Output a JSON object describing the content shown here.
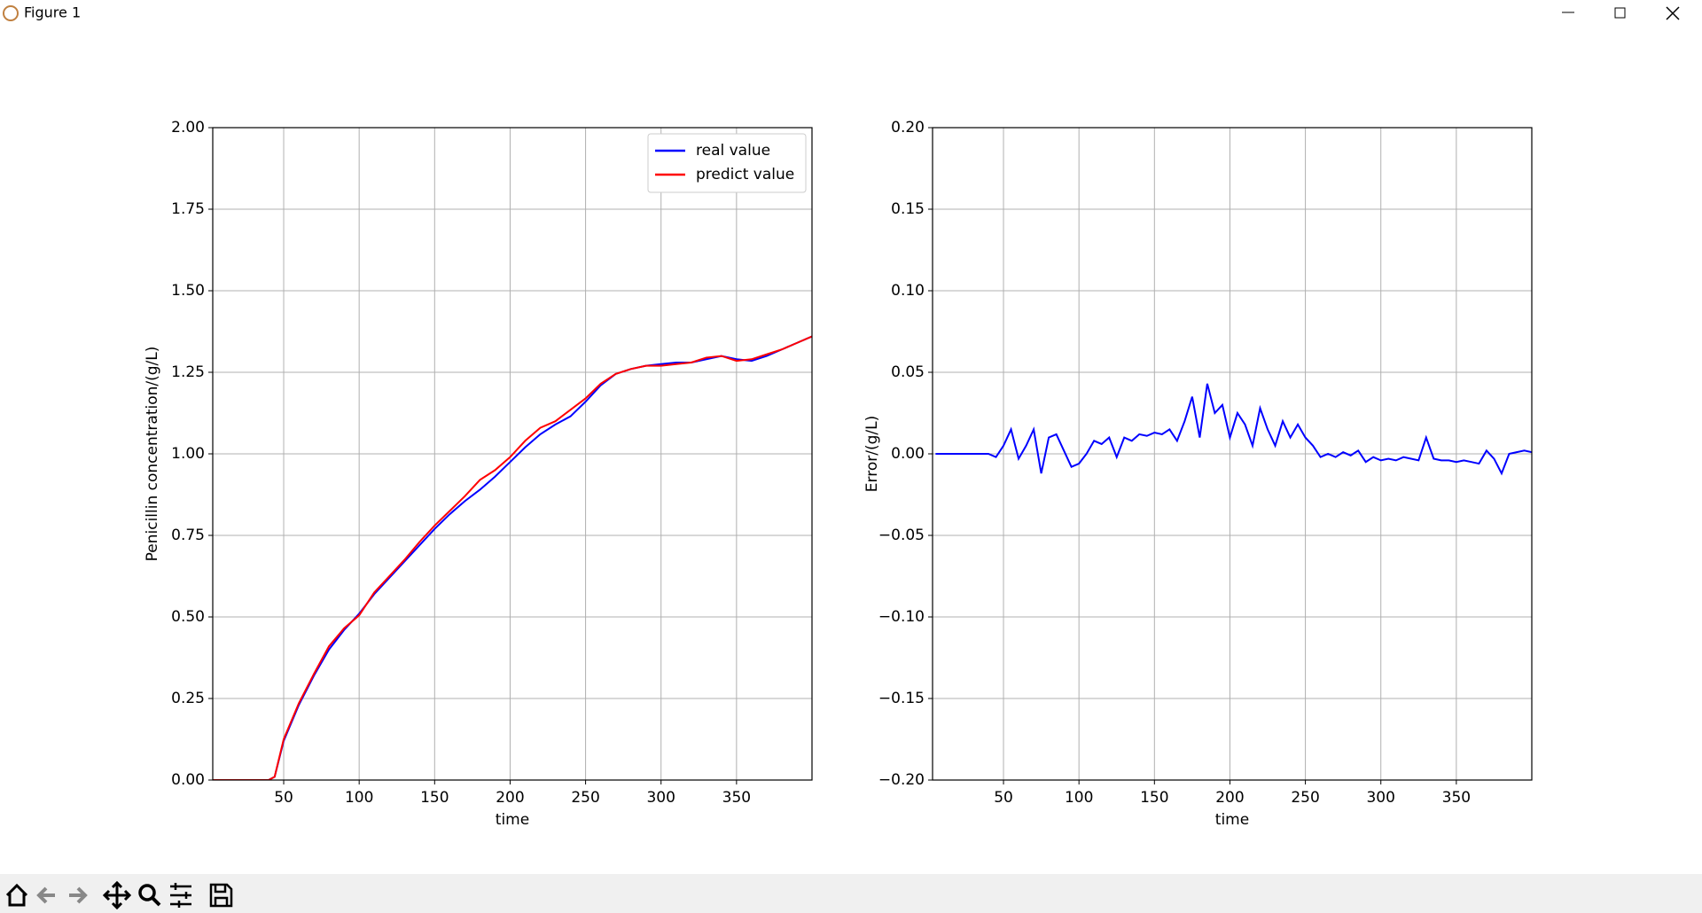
{
  "window": {
    "title": "Figure 1"
  },
  "chart_data": [
    {
      "type": "line",
      "xlabel": "time",
      "ylabel": "Penicillin concentration/(g/L)",
      "x": [
        3,
        10,
        20,
        30,
        40,
        44,
        50,
        60,
        70,
        80,
        90,
        100,
        110,
        120,
        130,
        140,
        150,
        160,
        170,
        180,
        190,
        200,
        210,
        220,
        230,
        240,
        250,
        260,
        270,
        280,
        290,
        300,
        310,
        320,
        330,
        340,
        350,
        360,
        370,
        380,
        390,
        400
      ],
      "series": [
        {
          "name": "real value",
          "color": "#0000ff",
          "values": [
            0,
            0,
            0,
            0,
            0,
            0.01,
            0.12,
            0.23,
            0.32,
            0.4,
            0.46,
            0.51,
            0.57,
            0.62,
            0.67,
            0.72,
            0.77,
            0.815,
            0.855,
            0.89,
            0.93,
            0.975,
            1.02,
            1.06,
            1.09,
            1.115,
            1.16,
            1.21,
            1.245,
            1.26,
            1.27,
            1.275,
            1.28,
            1.28,
            1.29,
            1.3,
            1.29,
            1.285,
            1.3,
            1.32,
            1.34,
            1.36
          ]
        },
        {
          "name": "predict value",
          "color": "#ff0000",
          "values": [
            0,
            0,
            0,
            0,
            0,
            0.01,
            0.125,
            0.235,
            0.325,
            0.41,
            0.465,
            0.505,
            0.575,
            0.625,
            0.675,
            0.73,
            0.78,
            0.825,
            0.87,
            0.92,
            0.95,
            0.99,
            1.04,
            1.08,
            1.1,
            1.135,
            1.17,
            1.215,
            1.245,
            1.26,
            1.27,
            1.27,
            1.275,
            1.28,
            1.295,
            1.3,
            1.285,
            1.29,
            1.305,
            1.32,
            1.34,
            1.36
          ]
        }
      ],
      "xlim": [
        3,
        400
      ],
      "ylim": [
        0,
        2
      ],
      "xticks": [
        50,
        100,
        150,
        200,
        250,
        300,
        350
      ],
      "yticks": [
        {
          "value": 0,
          "label": "0.00"
        },
        0.25,
        {
          "value": 0.5,
          "label": "0.50"
        },
        0.75,
        {
          "value": 1,
          "label": "1.00"
        },
        1.25,
        {
          "value": 1.5,
          "label": "1.50"
        },
        1.75,
        {
          "value": 2,
          "label": "2.00"
        }
      ],
      "grid": true,
      "legend": "upper right"
    },
    {
      "type": "line",
      "xlabel": "time",
      "ylabel": "Error/(g/L)",
      "x": [
        5,
        10,
        15,
        20,
        25,
        30,
        35,
        40,
        45,
        50,
        55,
        60,
        65,
        70,
        75,
        80,
        85,
        90,
        95,
        100,
        105,
        110,
        115,
        120,
        125,
        130,
        135,
        140,
        145,
        150,
        155,
        160,
        165,
        170,
        175,
        180,
        185,
        190,
        195,
        200,
        205,
        210,
        215,
        220,
        225,
        230,
        235,
        240,
        245,
        250,
        255,
        260,
        265,
        270,
        275,
        280,
        285,
        290,
        295,
        300,
        305,
        310,
        315,
        320,
        325,
        330,
        335,
        340,
        345,
        350,
        355,
        360,
        365,
        370,
        375,
        380,
        385,
        390,
        395,
        400
      ],
      "series": [
        {
          "color": "#0000ff",
          "values": [
            0,
            0,
            0,
            0,
            0,
            0,
            0,
            0,
            -0.002,
            0.005,
            0.015,
            -0.003,
            0.005,
            0.015,
            -0.012,
            0.01,
            0.012,
            0.002,
            -0.008,
            -0.006,
            0,
            0.008,
            0.006,
            0.01,
            -0.002,
            0.01,
            0.008,
            0.012,
            0.011,
            0.013,
            0.012,
            0.015,
            0.008,
            0.02,
            0.035,
            0.01,
            0.043,
            0.025,
            0.03,
            0.01,
            0.025,
            0.018,
            0.005,
            0.028,
            0.015,
            0.005,
            0.02,
            0.01,
            0.018,
            0.01,
            0.005,
            -0.002,
            0,
            -0.002,
            0.001,
            -0.001,
            0.002,
            -0.005,
            -0.002,
            -0.004,
            -0.003,
            -0.004,
            -0.002,
            -0.003,
            -0.004,
            0.01,
            -0.003,
            -0.004,
            -0.004,
            -0.005,
            -0.004,
            -0.005,
            -0.006,
            0.002,
            -0.003,
            -0.012,
            0,
            0.001,
            0.002,
            0.001
          ]
        }
      ],
      "xlim": [
        3,
        400
      ],
      "ylim": [
        -0.2,
        0.2
      ],
      "xticks": [
        50,
        100,
        150,
        200,
        250,
        300,
        350
      ],
      "yticks": [
        {
          "value": -0.2,
          "label": "−0.20"
        },
        {
          "value": -0.15,
          "label": "−0.15"
        },
        {
          "value": -0.1,
          "label": "−0.10"
        },
        {
          "value": -0.05,
          "label": "−0.05"
        },
        {
          "value": 0,
          "label": "0.00"
        },
        0.05,
        {
          "value": 0.1,
          "label": "0.10"
        },
        0.15,
        {
          "value": 0.2,
          "label": "0.20"
        }
      ],
      "grid": true
    }
  ]
}
